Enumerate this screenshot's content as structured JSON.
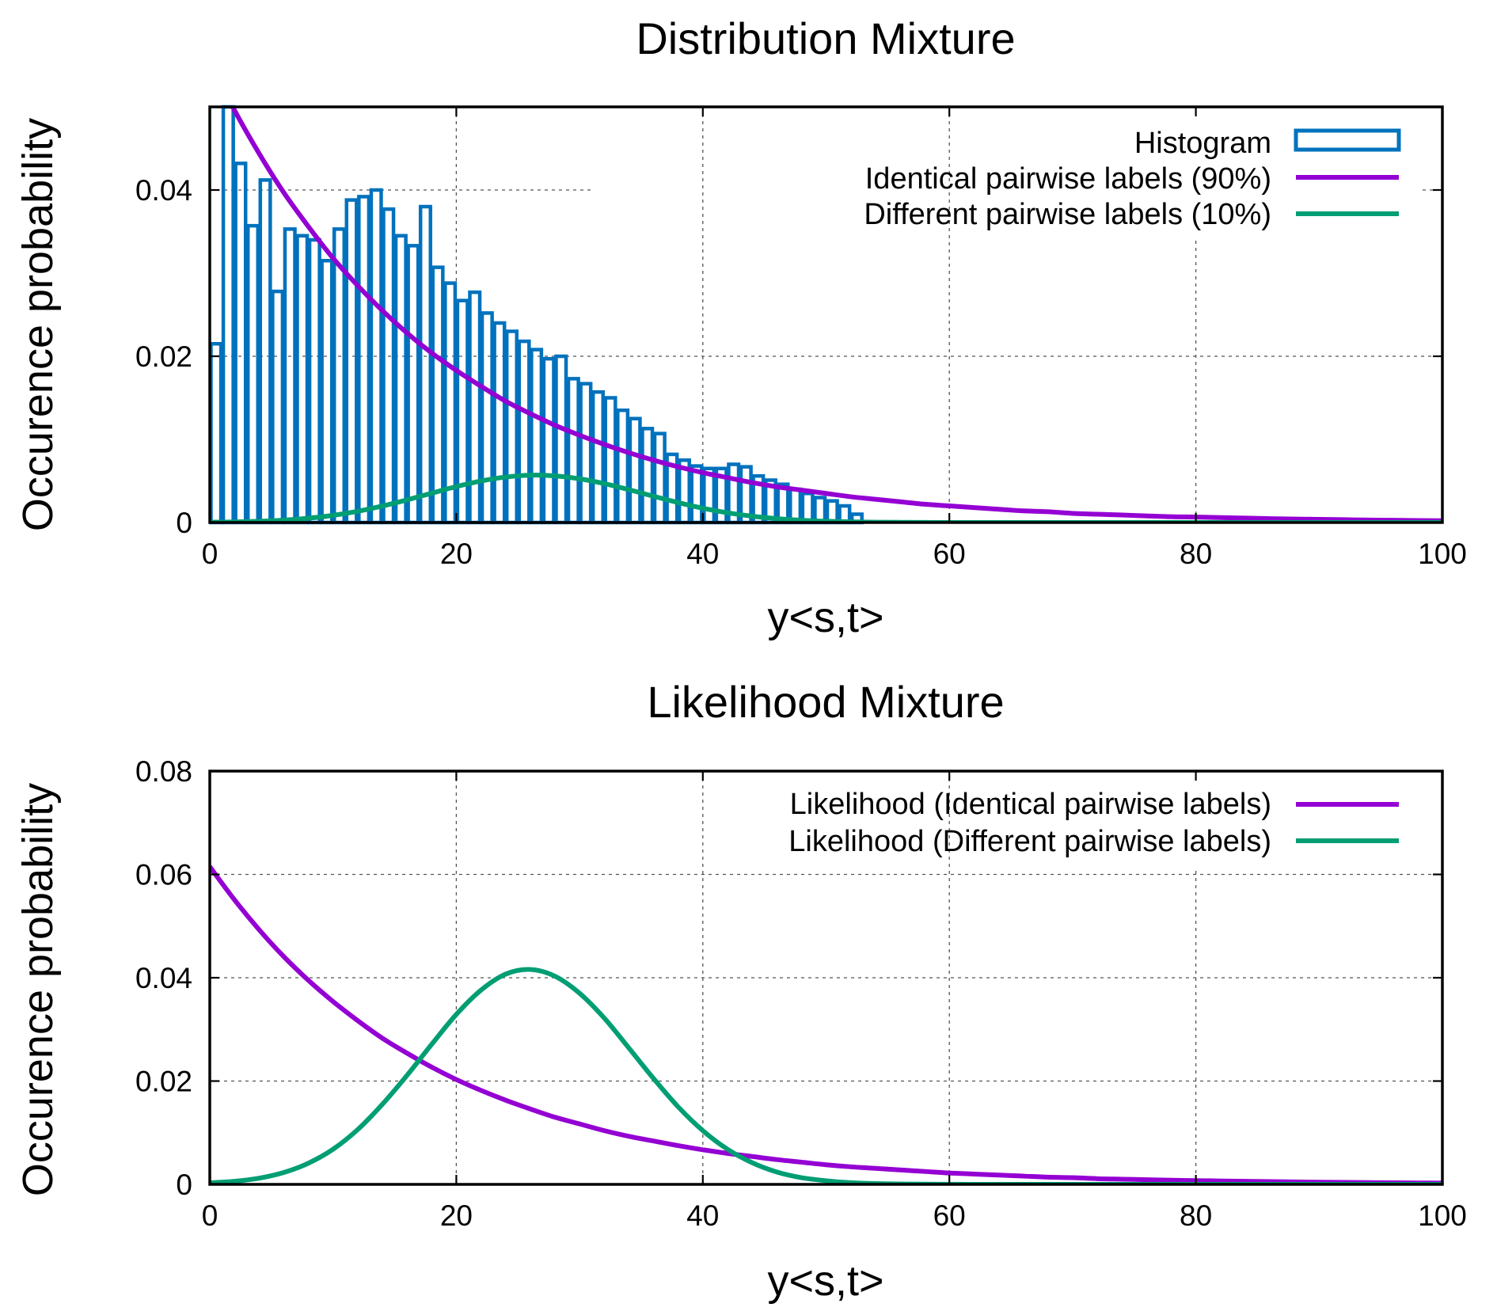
{
  "chart_data": [
    {
      "id": "top",
      "type": "bar",
      "title": "Distribution Mixture",
      "xlabel": "y<s,t>",
      "ylabel": "Occurence probability",
      "xlim": [
        0,
        100
      ],
      "ylim": [
        0,
        0.05
      ],
      "xticks": [
        0,
        20,
        40,
        60,
        80,
        100
      ],
      "xtick_labels": [
        "0",
        "20",
        "40",
        "60",
        "80",
        "100"
      ],
      "yticks": [
        0,
        0.02,
        0.04
      ],
      "ytick_labels": [
        "0",
        "0.02",
        "0.04"
      ],
      "grid": true,
      "legend_position": "top-right",
      "legend": [
        {
          "label": "Histogram",
          "kind": "box",
          "color": "#0072bd"
        },
        {
          "label": "Identical pairwise labels (90%)",
          "kind": "line",
          "color": "#9400d3"
        },
        {
          "label": "Different pairwise labels (10%)",
          "kind": "line",
          "color": "#009e73"
        }
      ],
      "histogram": {
        "name": "Histogram",
        "color": "#0072bd",
        "bin_width": 1,
        "x_start": 0,
        "values": [
          0.0215,
          0.05,
          0.0432,
          0.0357,
          0.0412,
          0.0278,
          0.0353,
          0.0345,
          0.034,
          0.0315,
          0.0353,
          0.0388,
          0.0392,
          0.04,
          0.0377,
          0.0345,
          0.0333,
          0.038,
          0.0307,
          0.0288,
          0.0267,
          0.0277,
          0.0252,
          0.024,
          0.023,
          0.0218,
          0.0208,
          0.0197,
          0.02,
          0.0173,
          0.0167,
          0.0157,
          0.015,
          0.0135,
          0.0125,
          0.0113,
          0.0107,
          0.0082,
          0.0075,
          0.0068,
          0.0065,
          0.0065,
          0.007,
          0.0067,
          0.0056,
          0.0051,
          0.0046,
          0.004,
          0.0035,
          0.003,
          0.0026,
          0.002,
          0.001
        ]
      },
      "series": [
        {
          "name": "Identical pairwise labels (90%)",
          "color": "#9400d3",
          "x": [
            0,
            2,
            4,
            6,
            8,
            10,
            12,
            14,
            16,
            18,
            20,
            22,
            24,
            26,
            28,
            30,
            32,
            34,
            36,
            38,
            40,
            42,
            44,
            46,
            48,
            50,
            52,
            54,
            56,
            58,
            60,
            62,
            64,
            66,
            68,
            70,
            72,
            74,
            76,
            78,
            80,
            82,
            84,
            86,
            88,
            90,
            92,
            94,
            96,
            98,
            100
          ],
          "y": [
            0.0554,
            0.0496,
            0.0444,
            0.0397,
            0.0356,
            0.0318,
            0.0285,
            0.0255,
            0.0228,
            0.0204,
            0.0183,
            0.0164,
            0.0146,
            0.0131,
            0.0117,
            0.0105,
            0.0094,
            0.0084,
            0.0075,
            0.0067,
            0.006,
            0.0054,
            0.0048,
            0.0043,
            0.0039,
            0.0035,
            0.0031,
            0.0028,
            0.0025,
            0.0022,
            0.002,
            0.0018,
            0.0016,
            0.0014,
            0.0013,
            0.0011,
            0.001,
            0.0009,
            0.0008,
            0.0007,
            0.00066,
            0.00059,
            0.00053,
            0.00047,
            0.00042,
            0.00038,
            0.00034,
            0.0003,
            0.00027,
            0.00024,
            0.00022
          ]
        },
        {
          "name": "Different pairwise labels (10%)",
          "color": "#009e73",
          "x": [
            0,
            2,
            4,
            6,
            8,
            10,
            12,
            14,
            16,
            18,
            20,
            22,
            24,
            26,
            28,
            30,
            32,
            34,
            36,
            38,
            40,
            42,
            44,
            46,
            48,
            50,
            52,
            54,
            56,
            58,
            60,
            62,
            64,
            66,
            68,
            70,
            72,
            74,
            76,
            78,
            80,
            82,
            84,
            86,
            88,
            90,
            92,
            94,
            96,
            98,
            100
          ],
          "y": [
            3e-05,
            7e-05,
            0.00015,
            0.00029,
            0.00052,
            0.00086,
            0.00135,
            0.00198,
            0.00272,
            0.00353,
            0.00432,
            0.00499,
            0.00547,
            0.00569,
            0.00561,
            0.00526,
            0.00468,
            0.00395,
            0.00316,
            0.0024,
            0.00172,
            0.00117,
            0.00076,
            0.00046,
            0.00027,
            0.00015,
            8e-05,
            4e-05,
            2e-05,
            1e-05,
            0,
            0,
            0,
            0,
            0,
            0,
            0,
            0,
            0,
            0,
            0,
            0,
            0,
            0,
            0,
            0,
            0,
            0,
            0,
            0,
            0
          ]
        }
      ]
    },
    {
      "id": "bottom",
      "type": "line",
      "title": "Likelihood Mixture",
      "xlabel": "y<s,t>",
      "ylabel": "Occurence probability",
      "xlim": [
        0,
        100
      ],
      "ylim": [
        0,
        0.08
      ],
      "xticks": [
        0,
        20,
        40,
        60,
        80,
        100
      ],
      "xtick_labels": [
        "0",
        "20",
        "40",
        "60",
        "80",
        "100"
      ],
      "yticks": [
        0,
        0.02,
        0.04,
        0.06,
        0.08
      ],
      "ytick_labels": [
        "0",
        "0.02",
        "0.04",
        "0.06",
        "0.08"
      ],
      "grid": true,
      "legend_position": "top-right",
      "legend": [
        {
          "label": "Likelihood (Identical pairwise labels)",
          "kind": "line",
          "color": "#9400d3"
        },
        {
          "label": "Likelihood (Different pairwise labels)",
          "kind": "line",
          "color": "#009e73"
        }
      ],
      "series": [
        {
          "name": "Likelihood (Identical pairwise labels)",
          "color": "#9400d3",
          "x": [
            0,
            2,
            4,
            6,
            8,
            10,
            12,
            14,
            16,
            18,
            20,
            22,
            24,
            26,
            28,
            30,
            32,
            34,
            36,
            38,
            40,
            42,
            44,
            46,
            48,
            50,
            52,
            54,
            56,
            58,
            60,
            62,
            64,
            66,
            68,
            70,
            72,
            74,
            76,
            78,
            80,
            82,
            84,
            86,
            88,
            90,
            92,
            94,
            96,
            98,
            100
          ],
          "y": [
            0.0615,
            0.0551,
            0.0493,
            0.0441,
            0.0395,
            0.0354,
            0.0317,
            0.0283,
            0.0254,
            0.0227,
            0.0203,
            0.0182,
            0.0163,
            0.0146,
            0.013,
            0.0117,
            0.0104,
            0.0093,
            0.0084,
            0.0075,
            0.0067,
            0.006,
            0.0054,
            0.0048,
            0.0043,
            0.0038,
            0.0034,
            0.0031,
            0.0028,
            0.0025,
            0.0022,
            0.002,
            0.0018,
            0.0016,
            0.0014,
            0.0013,
            0.0011,
            0.001,
            0.0009,
            0.0008,
            0.00073,
            0.00066,
            0.00059,
            0.00053,
            0.00047,
            0.00042,
            0.00038,
            0.00034,
            0.0003,
            0.00027,
            0.00024
          ]
        },
        {
          "name": "Likelihood (Different pairwise labels)",
          "color": "#009e73",
          "x": [
            0,
            2,
            4,
            6,
            8,
            10,
            12,
            14,
            16,
            18,
            20,
            22,
            24,
            26,
            28,
            30,
            32,
            34,
            36,
            38,
            40,
            42,
            44,
            46,
            48,
            50,
            52,
            54,
            56,
            58,
            60,
            62,
            64,
            66,
            68,
            70,
            72,
            74,
            76,
            78,
            80,
            82,
            84,
            86,
            88,
            90,
            92,
            94,
            96,
            98,
            100
          ],
          "y": [
            0.0003,
            0.0006,
            0.0012,
            0.0023,
            0.0041,
            0.0068,
            0.0106,
            0.0155,
            0.0211,
            0.0271,
            0.0329,
            0.0376,
            0.0407,
            0.0416,
            0.0403,
            0.037,
            0.0322,
            0.0264,
            0.0205,
            0.015,
            0.0104,
            0.0068,
            0.0042,
            0.0024,
            0.0013,
            0.0007,
            0.00033,
            0.00015,
            7e-05,
            3e-05,
            1e-05,
            0,
            0,
            0,
            0,
            0,
            0,
            0,
            0,
            0,
            0,
            0,
            0,
            0,
            0,
            0,
            0,
            0,
            0,
            0,
            0
          ]
        }
      ]
    }
  ]
}
